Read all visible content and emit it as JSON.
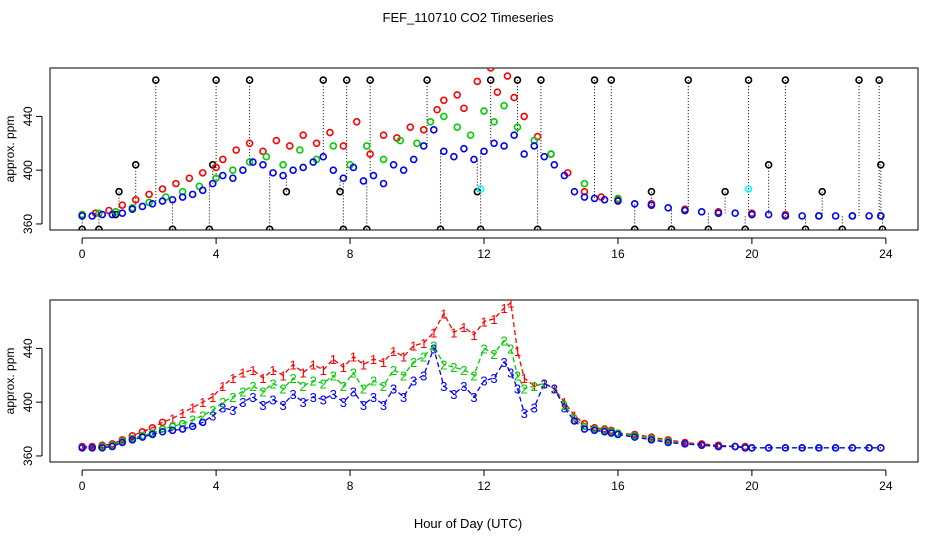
{
  "figure": {
    "title": "FEF_110710  CO2 Timeseries",
    "xlabel": "Hour of Day (UTC)"
  },
  "colors": {
    "background": "#ffffff",
    "axis": "#000000",
    "series_black": "#000000",
    "series_red": "#ff0000",
    "series_green": "#00cc00",
    "series_blue": "#0000ff",
    "series_cyan": "#00ffff"
  },
  "chart_data": [
    {
      "type": "scatter",
      "panel": "top",
      "ylabel": "approx. ppm",
      "xlim": [
        -0.96,
        24.96
      ],
      "ylim": [
        355.5,
        476
      ],
      "xticks": [
        0,
        4,
        8,
        12,
        16,
        20,
        24
      ],
      "xtick_labels": [
        "0",
        "4",
        "8",
        "12",
        "16",
        "20",
        "24"
      ],
      "yticks": [
        360,
        400,
        440
      ],
      "ytick_labels": [
        "360",
        "400",
        "440"
      ],
      "marker": "open-circle",
      "dropline_series": "black",
      "series": [
        {
          "name": "black",
          "color": "#000000",
          "x": [
            0.0,
            0.5,
            1.0,
            1.1,
            1.6,
            2.2,
            2.7,
            3.8,
            3.9,
            4.0,
            5.0,
            5.6,
            6.1,
            7.2,
            7.7,
            7.8,
            7.9,
            8.5,
            8.6,
            10.3,
            10.7,
            11.8,
            11.9,
            12.2,
            13.0,
            13.6,
            13.7,
            15.3,
            15.8,
            16.5,
            17.0,
            17.6,
            18.1,
            18.7,
            19.2,
            19.8,
            19.9,
            20.5,
            21.0,
            21.6,
            22.1,
            22.7,
            23.2,
            23.8,
            23.85,
            23.9
          ],
          "y": [
            356,
            356,
            367,
            384,
            404,
            467,
            356,
            356,
            404,
            467,
            467,
            356,
            384,
            467,
            384,
            356,
            467,
            356,
            467,
            467,
            356,
            384,
            356,
            467,
            467,
            356,
            467,
            467,
            467,
            356,
            384,
            356,
            467,
            356,
            384,
            356,
            467,
            404,
            467,
            356,
            384,
            356,
            467,
            467,
            404,
            356
          ]
        },
        {
          "name": "red",
          "color": "#ff0000",
          "x": [
            0.0,
            0.4,
            0.8,
            1.2,
            1.6,
            2.0,
            2.4,
            2.8,
            3.2,
            3.6,
            4.0,
            4.2,
            4.6,
            5.0,
            5.4,
            5.8,
            6.2,
            6.6,
            7.0,
            7.4,
            7.8,
            8.2,
            8.6,
            9.0,
            9.4,
            9.8,
            10.2,
            10.6,
            10.8,
            11.2,
            11.4,
            11.8,
            12.2,
            12.4,
            12.7,
            12.9,
            13.2,
            13.6,
            14.0,
            14.5,
            15.0,
            15.5,
            16.0,
            17.0,
            18.0,
            19.0,
            20.0,
            21.0,
            22.0,
            23.0,
            23.85
          ],
          "y": [
            367,
            368,
            370,
            374,
            378,
            382,
            386,
            390,
            394,
            398,
            402,
            408,
            415,
            420,
            414,
            422,
            418,
            426,
            420,
            428,
            418,
            436,
            412,
            426,
            424,
            432,
            430,
            445,
            452,
            456,
            446,
            466,
            476,
            458,
            470,
            454,
            440,
            425,
            412,
            398,
            384,
            380,
            378,
            375,
            371,
            369,
            368,
            367,
            366,
            366,
            366
          ]
        },
        {
          "name": "green",
          "color": "#00cc00",
          "x": [
            0.0,
            0.5,
            1.0,
            1.5,
            2.0,
            2.5,
            3.0,
            3.5,
            4.0,
            4.5,
            5.0,
            5.5,
            6.0,
            6.5,
            7.0,
            7.5,
            8.0,
            8.5,
            9.0,
            9.5,
            10.0,
            10.4,
            10.8,
            11.2,
            11.6,
            12.0,
            12.3,
            12.6,
            13.0,
            13.5,
            14.0,
            15.0,
            16.0,
            17.0,
            18.0,
            19.0,
            20.0,
            21.0,
            22.0,
            23.0,
            23.85
          ],
          "y": [
            367,
            368,
            369,
            372,
            376,
            380,
            384,
            388,
            394,
            400,
            406,
            410,
            404,
            415,
            408,
            418,
            404,
            418,
            408,
            422,
            420,
            436,
            440,
            432,
            426,
            444,
            436,
            448,
            432,
            422,
            412,
            390,
            379,
            374,
            370,
            368,
            367,
            366,
            366,
            366,
            366
          ]
        },
        {
          "name": "blue",
          "color": "#0000ff",
          "x": [
            0.0,
            0.3,
            0.6,
            0.9,
            1.2,
            1.5,
            1.8,
            2.1,
            2.4,
            2.7,
            3.0,
            3.3,
            3.6,
            3.9,
            4.2,
            4.5,
            4.8,
            5.1,
            5.4,
            5.7,
            6.0,
            6.3,
            6.6,
            6.9,
            7.2,
            7.5,
            7.8,
            8.1,
            8.4,
            8.7,
            9.0,
            9.3,
            9.6,
            9.9,
            10.2,
            10.5,
            10.8,
            11.1,
            11.4,
            11.7,
            12.0,
            12.3,
            12.6,
            12.9,
            13.2,
            13.5,
            13.8,
            14.1,
            14.4,
            14.7,
            15.0,
            15.3,
            15.6,
            16.0,
            16.5,
            17.0,
            17.5,
            18.0,
            18.5,
            19.0,
            19.5,
            20.0,
            20.5,
            21.0,
            21.5,
            22.0,
            22.5,
            23.0,
            23.5,
            23.85
          ],
          "y": [
            366,
            366,
            367,
            367,
            368,
            371,
            373,
            375,
            377,
            378,
            380,
            382,
            385,
            390,
            396,
            394,
            400,
            406,
            404,
            398,
            396,
            400,
            402,
            406,
            410,
            400,
            394,
            402,
            392,
            396,
            390,
            404,
            400,
            408,
            418,
            430,
            414,
            410,
            416,
            408,
            414,
            420,
            418,
            426,
            412,
            418,
            410,
            404,
            396,
            384,
            380,
            379,
            378,
            377,
            375,
            374,
            372,
            370,
            369,
            368,
            368,
            367,
            367,
            366,
            366,
            366,
            366,
            366,
            366,
            366
          ]
        },
        {
          "name": "cyan",
          "color": "#00ffff",
          "x": [
            11.9,
            19.9
          ],
          "y": [
            386,
            386
          ]
        }
      ]
    },
    {
      "type": "line",
      "panel": "bottom",
      "ylabel": "approx. ppm",
      "xlim": [
        -0.96,
        24.96
      ],
      "ylim": [
        355.5,
        476
      ],
      "xticks": [
        0,
        4,
        8,
        12,
        16,
        20,
        24
      ],
      "xtick_labels": [
        "0",
        "4",
        "8",
        "12",
        "16",
        "20",
        "24"
      ],
      "yticks": [
        360,
        400,
        440
      ],
      "ytick_labels": [
        "360",
        "400",
        "440"
      ],
      "line_style": "dashed",
      "point_labels": [
        "1",
        "2",
        "3"
      ],
      "gap_after": [
        15.8,
        19.8
      ],
      "series": [
        {
          "name": "1",
          "label": "1",
          "color": "#ff0000",
          "x": [
            0.0,
            0.3,
            0.6,
            0.9,
            1.2,
            1.5,
            1.8,
            2.1,
            2.4,
            2.7,
            3.0,
            3.3,
            3.6,
            3.9,
            4.2,
            4.5,
            4.8,
            5.1,
            5.4,
            5.7,
            6.0,
            6.3,
            6.6,
            6.9,
            7.2,
            7.5,
            7.8,
            8.1,
            8.4,
            8.7,
            9.0,
            9.3,
            9.6,
            9.9,
            10.2,
            10.5,
            10.8,
            11.1,
            11.4,
            11.7,
            12.0,
            12.3,
            12.6,
            12.8,
            13.0,
            13.2,
            13.5,
            13.8,
            14.1,
            14.4,
            14.7,
            15.0,
            15.3,
            15.6,
            15.8,
            16.0,
            16.5,
            17.0,
            17.5,
            18.0,
            18.5,
            19.0,
            19.5,
            19.8,
            20.0,
            20.5,
            21.0,
            21.5,
            22.0,
            22.5,
            23.0,
            23.5,
            23.85
          ],
          "y": [
            367,
            367,
            368,
            369,
            372,
            375,
            378,
            381,
            385,
            388,
            392,
            396,
            400,
            404,
            412,
            418,
            422,
            424,
            418,
            424,
            420,
            428,
            422,
            428,
            424,
            432,
            426,
            434,
            428,
            432,
            430,
            438,
            434,
            442,
            444,
            452,
            466,
            452,
            456,
            450,
            460,
            462,
            470,
            474,
            438,
            418,
            412,
            414,
            410,
            400,
            390,
            384,
            381,
            380,
            379,
            377,
            376,
            374,
            372,
            370,
            369,
            368,
            367,
            367,
            366,
            366,
            366,
            366,
            366,
            366,
            366,
            366,
            366
          ]
        },
        {
          "name": "2",
          "label": "2",
          "color": "#00cc00",
          "x": [
            0.0,
            0.3,
            0.6,
            0.9,
            1.2,
            1.5,
            1.8,
            2.1,
            2.4,
            2.7,
            3.0,
            3.3,
            3.6,
            3.9,
            4.2,
            4.5,
            4.8,
            5.1,
            5.4,
            5.7,
            6.0,
            6.3,
            6.6,
            6.9,
            7.2,
            7.5,
            7.8,
            8.1,
            8.4,
            8.7,
            9.0,
            9.3,
            9.6,
            9.9,
            10.2,
            10.5,
            10.8,
            11.1,
            11.4,
            11.7,
            12.0,
            12.3,
            12.6,
            12.8,
            13.0,
            13.2,
            13.5,
            13.8,
            14.1,
            14.4,
            14.7,
            15.0,
            15.3,
            15.6,
            15.8,
            16.0,
            16.5,
            17.0,
            17.5,
            18.0,
            18.5,
            19.0,
            19.5,
            19.8,
            20.0,
            20.5,
            21.0,
            21.5,
            22.0,
            22.5,
            23.0,
            23.5,
            23.85
          ],
          "y": [
            366,
            366,
            367,
            368,
            371,
            373,
            375,
            377,
            380,
            382,
            384,
            387,
            390,
            394,
            400,
            404,
            408,
            412,
            408,
            414,
            410,
            418,
            412,
            416,
            414,
            420,
            412,
            422,
            410,
            416,
            412,
            424,
            420,
            430,
            434,
            442,
            428,
            426,
            424,
            420,
            440,
            436,
            446,
            440,
            420,
            410,
            412,
            414,
            410,
            398,
            388,
            382,
            380,
            379,
            378,
            377,
            375,
            373,
            371,
            369,
            368,
            367,
            367,
            366,
            366,
            366,
            366,
            366,
            366,
            366,
            366,
            366,
            366
          ]
        },
        {
          "name": "3",
          "label": "3",
          "color": "#0000ff",
          "x": [
            0.0,
            0.3,
            0.6,
            0.9,
            1.2,
            1.5,
            1.8,
            2.1,
            2.4,
            2.7,
            3.0,
            3.3,
            3.6,
            3.9,
            4.2,
            4.5,
            4.8,
            5.1,
            5.4,
            5.7,
            6.0,
            6.3,
            6.6,
            6.9,
            7.2,
            7.5,
            7.8,
            8.1,
            8.4,
            8.7,
            9.0,
            9.3,
            9.6,
            9.9,
            10.2,
            10.5,
            10.8,
            11.1,
            11.4,
            11.7,
            12.0,
            12.3,
            12.6,
            12.8,
            13.0,
            13.2,
            13.5,
            13.8,
            14.1,
            14.4,
            14.7,
            15.0,
            15.3,
            15.6,
            15.8,
            16.0,
            16.5,
            17.0,
            17.5,
            18.0,
            18.5,
            19.0,
            19.5,
            19.8,
            20.0,
            20.5,
            21.0,
            21.5,
            22.0,
            22.5,
            23.0,
            23.5,
            23.85
          ],
          "y": [
            366,
            366,
            366,
            367,
            370,
            372,
            374,
            376,
            378,
            379,
            380,
            382,
            385,
            390,
            396,
            394,
            400,
            404,
            398,
            402,
            398,
            406,
            400,
            404,
            402,
            406,
            400,
            408,
            398,
            404,
            398,
            410,
            404,
            416,
            420,
            440,
            412,
            406,
            412,
            404,
            416,
            418,
            430,
            422,
            410,
            392,
            396,
            414,
            410,
            396,
            386,
            380,
            379,
            378,
            377,
            376,
            374,
            372,
            370,
            369,
            368,
            367,
            367,
            366,
            366,
            366,
            366,
            366,
            366,
            366,
            366,
            366,
            366
          ]
        }
      ]
    }
  ]
}
